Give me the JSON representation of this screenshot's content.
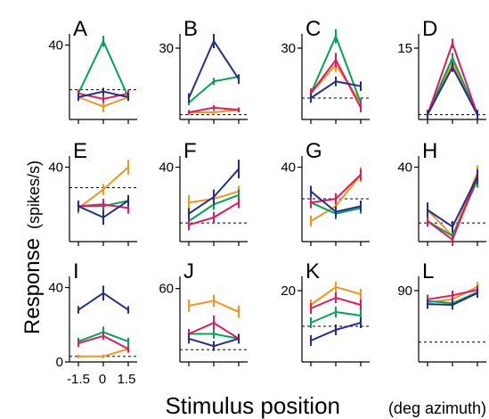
{
  "figure": {
    "ylabel": "Response",
    "ylabel_unit": "(spikes/s)",
    "xlabel": "Stimulus position",
    "xlabel_unit": "(deg azimuth)",
    "x_ticks": [
      "-1.5",
      "0",
      "1.5"
    ]
  },
  "colors": {
    "orange": "#F7941D",
    "green": "#00A651",
    "magenta": "#E8175D",
    "blue": "#262E8C"
  },
  "chart_data": [
    {
      "panel": "A",
      "type": "line",
      "x": [
        -1.5,
        0,
        1.5
      ],
      "ylim": [
        0,
        46
      ],
      "ytick": 40,
      "baseline": 16,
      "series": [
        {
          "color": "blue",
          "values": [
            12,
            15,
            12
          ],
          "err": [
            2,
            2,
            2
          ]
        },
        {
          "color": "green",
          "values": [
            14,
            42,
            12
          ],
          "err": [
            2,
            3,
            2
          ]
        },
        {
          "color": "magenta",
          "values": [
            14,
            11,
            14
          ],
          "err": [
            2,
            2,
            2
          ]
        },
        {
          "color": "orange",
          "values": [
            12,
            7,
            12
          ],
          "err": [
            2,
            3,
            2
          ]
        }
      ]
    },
    {
      "panel": "B",
      "type": "line",
      "x": [
        -1.5,
        0,
        1.5
      ],
      "ylim": [
        0,
        36
      ],
      "ytick": 30,
      "baseline": 2,
      "series": [
        {
          "color": "blue",
          "values": [
            9,
            33,
            17
          ],
          "err": [
            2,
            3,
            2
          ]
        },
        {
          "color": "green",
          "values": [
            7,
            16,
            18
          ],
          "err": [
            1,
            1.5,
            1
          ]
        },
        {
          "color": "magenta",
          "values": [
            3,
            5,
            4
          ],
          "err": [
            1,
            1,
            1
          ]
        },
        {
          "color": "orange",
          "values": [
            3,
            3,
            4
          ],
          "err": [
            1,
            1,
            1
          ]
        }
      ]
    },
    {
      "panel": "C",
      "type": "line",
      "x": [
        -1.5,
        0,
        1.5
      ],
      "ylim": [
        0,
        36
      ],
      "ytick": 30,
      "baseline": 9,
      "series": [
        {
          "color": "blue",
          "values": [
            9,
            16,
            14
          ],
          "err": [
            2,
            2,
            2
          ]
        },
        {
          "color": "green",
          "values": [
            11,
            35,
            7
          ],
          "err": [
            2,
            3,
            2
          ]
        },
        {
          "color": "magenta",
          "values": [
            11,
            25,
            5
          ],
          "err": [
            2,
            3,
            2
          ]
        },
        {
          "color": "orange",
          "values": [
            11,
            23,
            7
          ],
          "err": [
            2,
            3,
            2
          ]
        }
      ]
    },
    {
      "panel": "D",
      "type": "line",
      "x": [
        -1.5,
        0,
        1.5
      ],
      "ylim": [
        0,
        18
      ],
      "ytick": 15,
      "baseline": 1,
      "series": [
        {
          "color": "blue",
          "values": [
            1,
            11,
            1
          ],
          "err": [
            1,
            1,
            1
          ]
        },
        {
          "color": "green",
          "values": [
            1,
            13,
            1
          ],
          "err": [
            1,
            1,
            1
          ]
        },
        {
          "color": "magenta",
          "values": [
            1,
            16,
            1
          ],
          "err": [
            1,
            1,
            1
          ]
        },
        {
          "color": "orange",
          "values": [
            1,
            12,
            1
          ],
          "err": [
            1,
            1,
            1
          ]
        }
      ]
    },
    {
      "panel": "E",
      "type": "line",
      "x": [
        -1.5,
        0,
        1.5
      ],
      "ylim": [
        0,
        46
      ],
      "ytick": 40,
      "baseline": 29,
      "series": [
        {
          "color": "blue",
          "values": [
            19,
            13,
            22
          ],
          "err": [
            3,
            4,
            3
          ]
        },
        {
          "color": "green",
          "values": [
            19,
            19,
            22
          ],
          "err": [
            3,
            3,
            3
          ]
        },
        {
          "color": "magenta",
          "values": [
            19,
            20,
            18
          ],
          "err": [
            3,
            3,
            3
          ]
        },
        {
          "color": "orange",
          "values": [
            18,
            28,
            40
          ],
          "err": [
            3,
            3,
            4
          ]
        }
      ]
    },
    {
      "panel": "F",
      "type": "line",
      "x": [
        -1.5,
        0,
        1.5
      ],
      "ylim": [
        0,
        46
      ],
      "ytick": 40,
      "baseline": 10,
      "series": [
        {
          "color": "blue",
          "values": [
            15,
            24,
            39
          ],
          "err": [
            3,
            4,
            5
          ]
        },
        {
          "color": "green",
          "values": [
            11,
            20,
            25
          ],
          "err": [
            3,
            3,
            3
          ]
        },
        {
          "color": "magenta",
          "values": [
            9,
            13,
            21
          ],
          "err": [
            3,
            3,
            3
          ]
        },
        {
          "color": "orange",
          "values": [
            21,
            23,
            27
          ],
          "err": [
            4,
            4,
            3
          ]
        }
      ]
    },
    {
      "panel": "G",
      "type": "line",
      "x": [
        -1.5,
        0,
        1.5
      ],
      "ylim": [
        0,
        46
      ],
      "ytick": 40,
      "baseline": 23,
      "series": [
        {
          "color": "blue",
          "values": [
            27,
            16,
            19
          ],
          "err": [
            3,
            3,
            3
          ]
        },
        {
          "color": "green",
          "values": [
            21,
            15,
            18
          ],
          "err": [
            3,
            3,
            3
          ]
        },
        {
          "color": "magenta",
          "values": [
            21,
            23,
            36
          ],
          "err": [
            3,
            3,
            3
          ]
        },
        {
          "color": "orange",
          "values": [
            11,
            19,
            36
          ],
          "err": [
            3,
            3,
            4
          ]
        }
      ]
    },
    {
      "panel": "H",
      "type": "line",
      "x": [
        -1.5,
        0,
        1.5
      ],
      "ylim": [
        0,
        46
      ],
      "ytick": 40,
      "baseline": 10,
      "series": [
        {
          "color": "blue",
          "values": [
            17,
            8,
            35
          ],
          "err": [
            4,
            3,
            4
          ]
        },
        {
          "color": "green",
          "values": [
            11,
            3,
            33
          ],
          "err": [
            3,
            3,
            4
          ]
        },
        {
          "color": "magenta",
          "values": [
            11,
            1,
            35
          ],
          "err": [
            3,
            2,
            4
          ]
        },
        {
          "color": "orange",
          "values": [
            17,
            3,
            37
          ],
          "err": [
            4,
            2,
            4
          ]
        }
      ]
    },
    {
      "panel": "I",
      "type": "line",
      "x": [
        -1.5,
        0,
        1.5
      ],
      "ylim": [
        0,
        46
      ],
      "ytick": 40,
      "baseline": 3,
      "series": [
        {
          "color": "blue",
          "values": [
            28,
            37,
            28
          ],
          "err": [
            2,
            4,
            2
          ]
        },
        {
          "color": "green",
          "values": [
            11,
            16,
            11
          ],
          "err": [
            2,
            3,
            2
          ]
        },
        {
          "color": "magenta",
          "values": [
            10,
            14,
            7
          ],
          "err": [
            2,
            2,
            2
          ]
        },
        {
          "color": "orange",
          "values": [
            3,
            3,
            7
          ],
          "err": [
            1,
            1,
            2
          ]
        }
      ]
    },
    {
      "panel": "J",
      "type": "line",
      "x": [
        -1.5,
        0,
        1.5
      ],
      "ylim": [
        0,
        70
      ],
      "ytick": 60,
      "baseline": 10,
      "series": [
        {
          "color": "blue",
          "values": [
            19,
            13,
            19
          ],
          "err": [
            4,
            4,
            4
          ]
        },
        {
          "color": "green",
          "values": [
            23,
            23,
            19
          ],
          "err": [
            4,
            4,
            4
          ]
        },
        {
          "color": "magenta",
          "values": [
            23,
            32,
            19
          ],
          "err": [
            4,
            6,
            4
          ]
        },
        {
          "color": "orange",
          "values": [
            46,
            50,
            41
          ],
          "err": [
            5,
            5,
            5
          ]
        }
      ]
    },
    {
      "panel": "K",
      "type": "line",
      "x": [
        -1.5,
        0,
        1.5
      ],
      "ylim": [
        0,
        24
      ],
      "ytick": 20,
      "baseline": 10,
      "series": [
        {
          "color": "blue",
          "values": [
            6,
            9,
            11
          ],
          "err": [
            1.5,
            1.5,
            1.5
          ]
        },
        {
          "color": "green",
          "values": [
            11,
            14,
            13
          ],
          "err": [
            1.5,
            1.5,
            1.5
          ]
        },
        {
          "color": "magenta",
          "values": [
            15,
            18,
            16
          ],
          "err": [
            1.5,
            1.5,
            1.5
          ]
        },
        {
          "color": "orange",
          "values": [
            16,
            21,
            19
          ],
          "err": [
            1.5,
            1.5,
            1.5
          ]
        }
      ]
    },
    {
      "panel": "L",
      "type": "line",
      "x": [
        -1.5,
        0,
        1.5
      ],
      "ylim": [
        0,
        108
      ],
      "ytick": 90,
      "baseline": 25,
      "series": [
        {
          "color": "blue",
          "values": [
            73,
            72,
            87
          ],
          "err": [
            6,
            6,
            6
          ]
        },
        {
          "color": "green",
          "values": [
            77,
            74,
            88
          ],
          "err": [
            6,
            6,
            6
          ]
        },
        {
          "color": "magenta",
          "values": [
            79,
            84,
            91
          ],
          "err": [
            6,
            6,
            6
          ]
        },
        {
          "color": "orange",
          "values": [
            75,
            79,
            95
          ],
          "err": [
            6,
            6,
            6
          ]
        }
      ]
    }
  ]
}
